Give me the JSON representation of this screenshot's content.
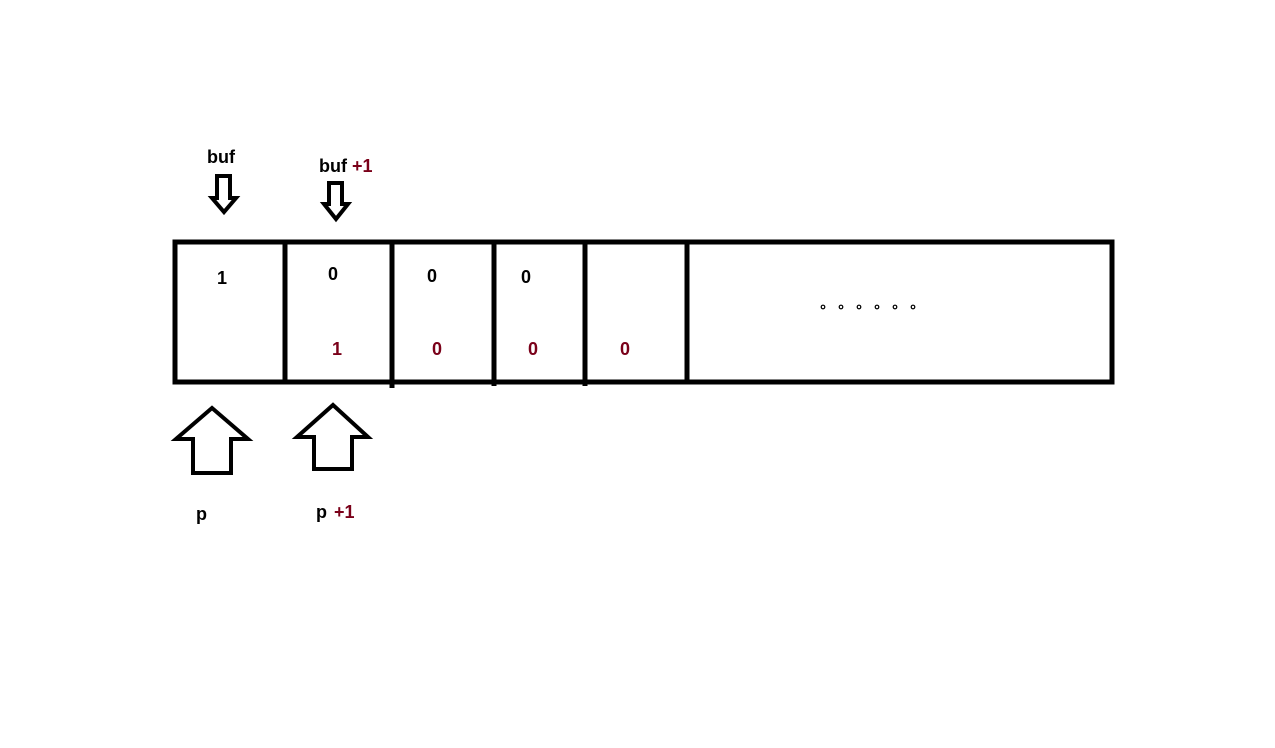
{
  "colors": {
    "ink": "#000000",
    "accent": "#7a0019",
    "background": "#ffffff"
  },
  "labels": {
    "buf": "buf",
    "buf_plus": "+1",
    "p": "p",
    "p_plus": "+1"
  },
  "cells": [
    {
      "top": "1",
      "bottom": ""
    },
    {
      "top": "0",
      "bottom": "1"
    },
    {
      "top": "0",
      "bottom": "0"
    },
    {
      "top": "0",
      "bottom": "0"
    },
    {
      "top": "",
      "bottom": "0"
    }
  ],
  "ellipsis_dot_count": 6
}
